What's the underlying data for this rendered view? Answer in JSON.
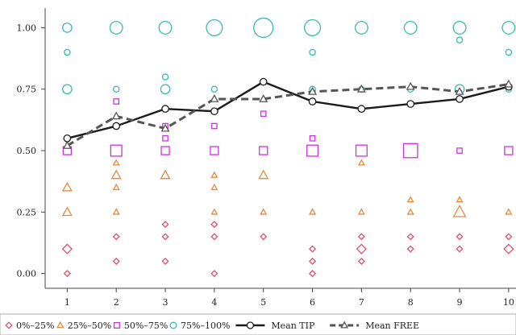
{
  "chart_data": {
    "type": "scatter",
    "title": "",
    "xlabel": "",
    "ylabel": "",
    "xlim": [
      0.55,
      10.15
    ],
    "ylim": [
      -0.06,
      1.08
    ],
    "x_ticks": [
      1,
      2,
      3,
      4,
      5,
      6,
      7,
      8,
      9,
      10
    ],
    "x_tick_labels": [
      "1",
      "2",
      "3",
      "4",
      "5",
      "6",
      "7",
      "8",
      "9",
      "10"
    ],
    "y_ticks": [
      0.0,
      0.25,
      0.5,
      0.75,
      1.0
    ],
    "y_tick_labels": [
      "0.00",
      "0.25",
      "0.50",
      "0.75",
      "1.00"
    ],
    "grid": false,
    "legend_position": "bottom",
    "groups": [
      {
        "name": "0%–25%",
        "marker": "diamond",
        "color": "#e0506a",
        "points": [
          {
            "x": 1,
            "y": 0.1,
            "size": 2
          },
          {
            "x": 1,
            "y": 0.0,
            "size": 1
          },
          {
            "x": 2,
            "y": 0.15,
            "size": 1
          },
          {
            "x": 2,
            "y": 0.05,
            "size": 1
          },
          {
            "x": 3,
            "y": 0.2,
            "size": 1
          },
          {
            "x": 3,
            "y": 0.15,
            "size": 1
          },
          {
            "x": 3,
            "y": 0.05,
            "size": 1
          },
          {
            "x": 4,
            "y": 0.2,
            "size": 1
          },
          {
            "x": 4,
            "y": 0.15,
            "size": 1
          },
          {
            "x": 4,
            "y": 0.0,
            "size": 1
          },
          {
            "x": 5,
            "y": 0.15,
            "size": 1
          },
          {
            "x": 6,
            "y": 0.1,
            "size": 1
          },
          {
            "x": 6,
            "y": 0.05,
            "size": 1
          },
          {
            "x": 6,
            "y": 0.0,
            "size": 1
          },
          {
            "x": 7,
            "y": 0.15,
            "size": 1
          },
          {
            "x": 7,
            "y": 0.1,
            "size": 2
          },
          {
            "x": 7,
            "y": 0.05,
            "size": 1
          },
          {
            "x": 8,
            "y": 0.15,
            "size": 1
          },
          {
            "x": 8,
            "y": 0.1,
            "size": 1
          },
          {
            "x": 9,
            "y": 0.15,
            "size": 1
          },
          {
            "x": 9,
            "y": 0.1,
            "size": 1
          },
          {
            "x": 10,
            "y": 0.15,
            "size": 1
          },
          {
            "x": 10,
            "y": 0.1,
            "size": 2
          }
        ]
      },
      {
        "name": "25%–50%",
        "marker": "triangle",
        "color": "#e8893a",
        "points": [
          {
            "x": 1,
            "y": 0.35,
            "size": 2
          },
          {
            "x": 1,
            "y": 0.25,
            "size": 2
          },
          {
            "x": 2,
            "y": 0.45,
            "size": 1
          },
          {
            "x": 2,
            "y": 0.4,
            "size": 2
          },
          {
            "x": 2,
            "y": 0.35,
            "size": 1
          },
          {
            "x": 2,
            "y": 0.25,
            "size": 1
          },
          {
            "x": 3,
            "y": 0.4,
            "size": 2
          },
          {
            "x": 4,
            "y": 0.4,
            "size": 1
          },
          {
            "x": 4,
            "y": 0.35,
            "size": 1
          },
          {
            "x": 4,
            "y": 0.25,
            "size": 1
          },
          {
            "x": 5,
            "y": 0.4,
            "size": 2
          },
          {
            "x": 5,
            "y": 0.25,
            "size": 1
          },
          {
            "x": 6,
            "y": 0.25,
            "size": 1
          },
          {
            "x": 7,
            "y": 0.45,
            "size": 1
          },
          {
            "x": 7,
            "y": 0.25,
            "size": 1
          },
          {
            "x": 8,
            "y": 0.3,
            "size": 1
          },
          {
            "x": 8,
            "y": 0.25,
            "size": 1
          },
          {
            "x": 9,
            "y": 0.3,
            "size": 1
          },
          {
            "x": 9,
            "y": 0.25,
            "size": 3
          },
          {
            "x": 10,
            "y": 0.25,
            "size": 1
          }
        ]
      },
      {
        "name": "50%–75%",
        "marker": "square",
        "color": "#cc33dd",
        "points": [
          {
            "x": 1,
            "y": 0.5,
            "size": 2
          },
          {
            "x": 2,
            "y": 0.7,
            "size": 1
          },
          {
            "x": 2,
            "y": 0.5,
            "size": 3
          },
          {
            "x": 3,
            "y": 0.6,
            "size": 1
          },
          {
            "x": 3,
            "y": 0.55,
            "size": 1
          },
          {
            "x": 3,
            "y": 0.5,
            "size": 2
          },
          {
            "x": 4,
            "y": 0.6,
            "size": 1
          },
          {
            "x": 4,
            "y": 0.5,
            "size": 2
          },
          {
            "x": 5,
            "y": 0.65,
            "size": 1
          },
          {
            "x": 5,
            "y": 0.5,
            "size": 2
          },
          {
            "x": 6,
            "y": 0.55,
            "size": 1
          },
          {
            "x": 6,
            "y": 0.5,
            "size": 3
          },
          {
            "x": 7,
            "y": 0.5,
            "size": 3
          },
          {
            "x": 8,
            "y": 0.5,
            "size": 4
          },
          {
            "x": 9,
            "y": 0.5,
            "size": 1
          },
          {
            "x": 10,
            "y": 0.5,
            "size": 2
          }
        ]
      },
      {
        "name": "75%–100%",
        "marker": "circle",
        "color": "#3bbab0",
        "points": [
          {
            "x": 1,
            "y": 1.0,
            "size": 2
          },
          {
            "x": 1,
            "y": 0.9,
            "size": 1
          },
          {
            "x": 1,
            "y": 0.75,
            "size": 2
          },
          {
            "x": 2,
            "y": 1.0,
            "size": 3
          },
          {
            "x": 2,
            "y": 0.75,
            "size": 1
          },
          {
            "x": 3,
            "y": 1.0,
            "size": 3
          },
          {
            "x": 3,
            "y": 0.8,
            "size": 1
          },
          {
            "x": 3,
            "y": 0.75,
            "size": 2
          },
          {
            "x": 4,
            "y": 1.0,
            "size": 4
          },
          {
            "x": 4,
            "y": 0.75,
            "size": 1
          },
          {
            "x": 5,
            "y": 1.0,
            "size": 5
          },
          {
            "x": 6,
            "y": 1.0,
            "size": 4
          },
          {
            "x": 6,
            "y": 0.9,
            "size": 1
          },
          {
            "x": 6,
            "y": 0.75,
            "size": 1
          },
          {
            "x": 7,
            "y": 1.0,
            "size": 3
          },
          {
            "x": 7,
            "y": 0.75,
            "size": 1
          },
          {
            "x": 8,
            "y": 1.0,
            "size": 3
          },
          {
            "x": 8,
            "y": 0.75,
            "size": 1
          },
          {
            "x": 9,
            "y": 1.0,
            "size": 3
          },
          {
            "x": 9,
            "y": 0.95,
            "size": 1
          },
          {
            "x": 9,
            "y": 0.75,
            "size": 2
          },
          {
            "x": 10,
            "y": 1.0,
            "size": 3
          },
          {
            "x": 10,
            "y": 0.9,
            "size": 1
          },
          {
            "x": 10,
            "y": 0.75,
            "size": 1
          }
        ]
      }
    ],
    "series": [
      {
        "name": "Mean TIP",
        "style": "solid",
        "marker": "circle",
        "color": "#1a1a1a",
        "x": [
          1,
          2,
          3,
          4,
          5,
          6,
          7,
          8,
          9,
          10
        ],
        "values": [
          0.55,
          0.6,
          0.67,
          0.66,
          0.78,
          0.7,
          0.67,
          0.69,
          0.71,
          0.76
        ]
      },
      {
        "name": "Mean FREE",
        "style": "dashed",
        "marker": "triangle",
        "color": "#555555",
        "x": [
          1,
          2,
          3,
          4,
          5,
          6,
          7,
          8,
          9,
          10
        ],
        "values": [
          0.52,
          0.64,
          0.59,
          0.71,
          0.71,
          0.74,
          0.75,
          0.76,
          0.74,
          0.77
        ]
      }
    ]
  }
}
